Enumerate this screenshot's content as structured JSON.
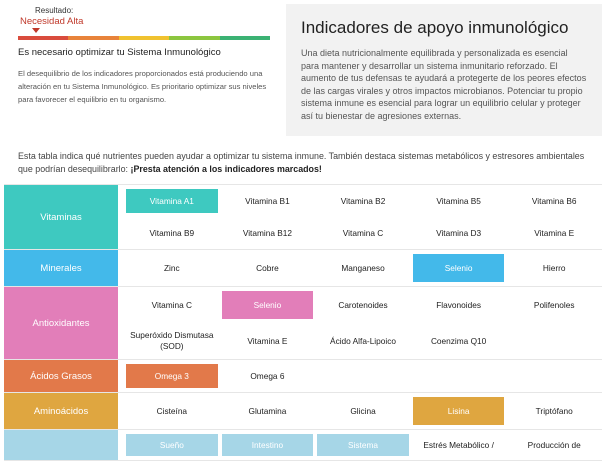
{
  "result": {
    "label": "Resultado:",
    "value": "Necesidad Alta",
    "scale_colors": [
      "#d94c3d",
      "#e8833a",
      "#f0c22f",
      "#8cc63f",
      "#3bb273"
    ],
    "heading": "Es necesario optimizar tu Sistema Inmunológico",
    "body": "El desequilibrio de los indicadores proporcionados está produciendo una alteración en tu Sistema Inmunológico. Es prioritario optimizar sus niveles para favorecer el equilibrio en tu organismo."
  },
  "info": {
    "title": "Indicadores de apoyo inmunológico",
    "body": "Una dieta nutricionalmente equilibrada y personalizada es esencial para mantener y desarrollar un sistema inmunitario reforzado. El aumento de tus defensas te ayudará a protegerte de los peores efectos de las cargas virales y otros impactos microbianos. Potenciar tu propio sistema inmune es esencial para lograr un equilibrio celular y proteger así tu bienestar de agresiones externas."
  },
  "intro": {
    "text": "Esta tabla indica qué nutrientes pueden ayudar a optimizar tu sistema inmune. También destaca sistemas metabólicos y estresores ambientales que podrían desequilibrarlo: ",
    "bold": "¡Presta atención a los indicadores marcados!"
  },
  "groups": [
    {
      "name": "Vitaminas",
      "color": "#3ec9c0",
      "items": [
        {
          "label": "Vitamina A1",
          "hl": true
        },
        {
          "label": "Vitamina B1"
        },
        {
          "label": "Vitamina B2"
        },
        {
          "label": "Vitamina B5"
        },
        {
          "label": "Vitamina B6"
        },
        {
          "label": "Vitamina B9"
        },
        {
          "label": "Vitamina B12"
        },
        {
          "label": "Vitamina C"
        },
        {
          "label": "Vitamina D3"
        },
        {
          "label": "Vitamina E"
        }
      ]
    },
    {
      "name": "Minerales",
      "color": "#43b9ea",
      "items": [
        {
          "label": "Zinc"
        },
        {
          "label": "Cobre"
        },
        {
          "label": "Manganeso"
        },
        {
          "label": "Selenio",
          "hl": true
        },
        {
          "label": "Hierro"
        }
      ]
    },
    {
      "name": "Antioxidantes",
      "color": "#e27eb9",
      "items": [
        {
          "label": "Vitamina C"
        },
        {
          "label": "Selenio",
          "hl": true
        },
        {
          "label": "Carotenoides"
        },
        {
          "label": "Flavonoides"
        },
        {
          "label": "Polifenoles"
        },
        {
          "label": "Superóxido Dismutasa (SOD)"
        },
        {
          "label": "Vitamina E"
        },
        {
          "label": "Ácido Alfa-Lipoico"
        },
        {
          "label": "Coenzima Q10"
        }
      ]
    },
    {
      "name": "Ácidos Grasos",
      "color": "#e2794a",
      "items": [
        {
          "label": "Omega 3",
          "hl": true
        },
        {
          "label": "Omega 6"
        }
      ]
    },
    {
      "name": "Aminoácidos",
      "color": "#dfa640",
      "items": [
        {
          "label": "Cisteína"
        },
        {
          "label": "Glutamina"
        },
        {
          "label": "Glicina"
        },
        {
          "label": "Lisina",
          "hl": true
        },
        {
          "label": "Triptófano"
        }
      ]
    },
    {
      "name": "",
      "color": "#a6d6e7",
      "items": [
        {
          "label": "Sueño",
          "hl": true
        },
        {
          "label": "Intestino",
          "hl": true
        },
        {
          "label": "Sistema",
          "hl": true
        },
        {
          "label": "Estrés Metabólico /"
        },
        {
          "label": "Producción de"
        }
      ]
    }
  ]
}
